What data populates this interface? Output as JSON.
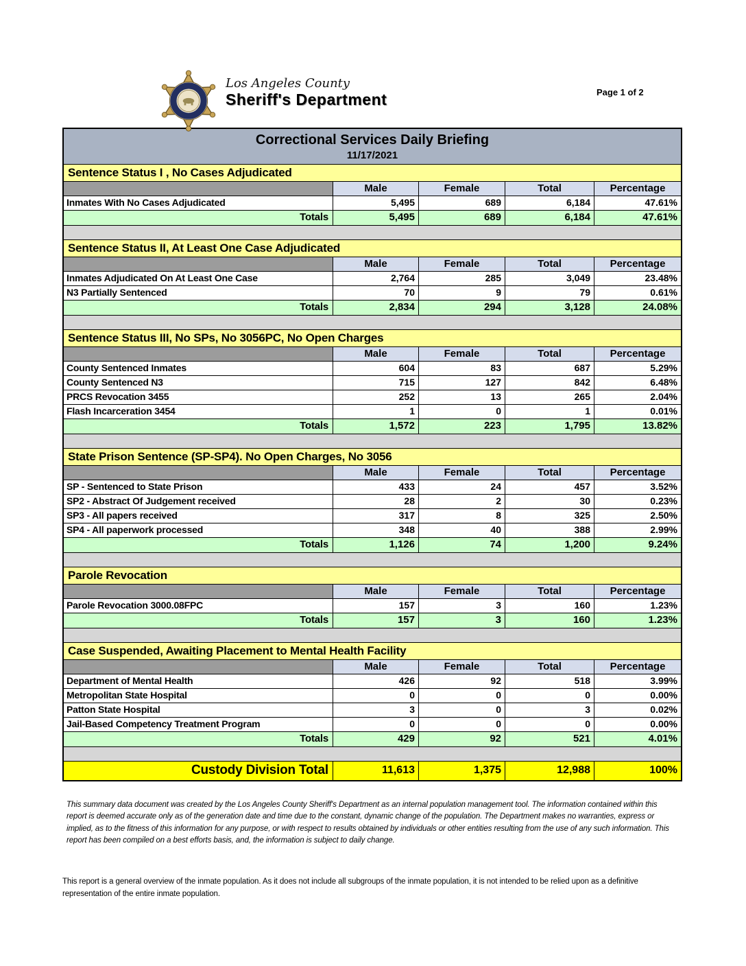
{
  "header": {
    "agency_line1": "Los Angeles County",
    "agency_line2": "Sheriff's Department",
    "page_indicator": "Page 1 of 2"
  },
  "report": {
    "title": "Correctional Services Daily Briefing",
    "date": "11/17/2021",
    "columns": {
      "male": "Male",
      "female": "Female",
      "total": "Total",
      "percentage": "Percentage"
    },
    "totals_label": "Totals"
  },
  "sections": [
    {
      "title": "Sentence Status I , No Cases Adjudicated",
      "rows": [
        {
          "label": "Inmates With No Cases Adjudicated",
          "male": "5,495",
          "female": "689",
          "total": "6,184",
          "percentage": "47.61%"
        }
      ],
      "totals": {
        "male": "5,495",
        "female": "689",
        "total": "6,184",
        "percentage": "47.61%"
      }
    },
    {
      "title": "Sentence Status II, At Least One Case Adjudicated",
      "rows": [
        {
          "label": "Inmates Adjudicated On At Least One Case",
          "male": "2,764",
          "female": "285",
          "total": "3,049",
          "percentage": "23.48%"
        },
        {
          "label": "N3 Partially Sentenced",
          "male": "70",
          "female": "9",
          "total": "79",
          "percentage": "0.61%"
        }
      ],
      "totals": {
        "male": "2,834",
        "female": "294",
        "total": "3,128",
        "percentage": "24.08%"
      }
    },
    {
      "title": "Sentence Status III, No SPs, No 3056PC, No Open Charges",
      "rows": [
        {
          "label": "County Sentenced Inmates",
          "male": "604",
          "female": "83",
          "total": "687",
          "percentage": "5.29%"
        },
        {
          "label": "County Sentenced N3",
          "male": "715",
          "female": "127",
          "total": "842",
          "percentage": "6.48%"
        },
        {
          "label": "PRCS Revocation 3455",
          "male": "252",
          "female": "13",
          "total": "265",
          "percentage": "2.04%"
        },
        {
          "label": "Flash Incarceration 3454",
          "male": "1",
          "female": "0",
          "total": "1",
          "percentage": "0.01%"
        }
      ],
      "totals": {
        "male": "1,572",
        "female": "223",
        "total": "1,795",
        "percentage": "13.82%"
      }
    },
    {
      "title": "State Prison Sentence (SP-SP4). No Open Charges, No 3056",
      "rows": [
        {
          "label": "SP - Sentenced to State Prison",
          "male": "433",
          "female": "24",
          "total": "457",
          "percentage": "3.52%"
        },
        {
          "label": "SP2 - Abstract Of Judgement received",
          "male": "28",
          "female": "2",
          "total": "30",
          "percentage": "0.23%"
        },
        {
          "label": "SP3 - All papers received",
          "male": "317",
          "female": "8",
          "total": "325",
          "percentage": "2.50%"
        },
        {
          "label": "SP4 - All paperwork processed",
          "male": "348",
          "female": "40",
          "total": "388",
          "percentage": "2.99%"
        }
      ],
      "totals": {
        "male": "1,126",
        "female": "74",
        "total": "1,200",
        "percentage": "9.24%"
      }
    },
    {
      "title": "Parole Revocation",
      "rows": [
        {
          "label": "Parole Revocation 3000.08FPC",
          "male": "157",
          "female": "3",
          "total": "160",
          "percentage": "1.23%"
        }
      ],
      "totals": {
        "male": "157",
        "female": "3",
        "total": "160",
        "percentage": "1.23%"
      }
    },
    {
      "title": "Case Suspended, Awaiting Placement to Mental Health Facility",
      "rows": [
        {
          "label": "Department of Mental Health",
          "male": "426",
          "female": "92",
          "total": "518",
          "percentage": "3.99%"
        },
        {
          "label": "Metropolitan State Hospital",
          "male": "0",
          "female": "0",
          "total": "0",
          "percentage": "0.00%"
        },
        {
          "label": "Patton State Hospital",
          "male": "3",
          "female": "0",
          "total": "3",
          "percentage": "0.02%"
        },
        {
          "label": "Jail-Based Competency Treatment Program",
          "male": "0",
          "female": "0",
          "total": "0",
          "percentage": "0.00%"
        }
      ],
      "totals": {
        "male": "429",
        "female": "92",
        "total": "521",
        "percentage": "4.01%"
      }
    }
  ],
  "grand_total": {
    "label": "Custody Division Total",
    "male": "11,613",
    "female": "1,375",
    "total": "12,988",
    "percentage": "100%"
  },
  "footer": {
    "disclaimer": "This summary data document was created by the Los Angeles County Sheriff's Department as an internal population management tool.  The information contained within this report is deemed accurate only as of the generation date and time due to the constant, dynamic change of the population.  The Department makes no warranties, express or implied, as to the fitness of this information for any purpose, or with respect to results obtained by individuals or other entities resulting from the use of any such information.  This report has been compiled on a best efforts basis, and, the information is subject to daily change.",
    "note": "This report is a general overview of the inmate population.  As it does not include all subgroups of the inmate population, it is not intended to be relied upon as a definitive representation of the entire inmate population."
  },
  "colors": {
    "title_bar": "#a9b3c3",
    "section_header_yellow": "#ffff99",
    "column_header_blue": "#d5dcec",
    "column_spacer_gray": "#9c9c9c",
    "totals_green": "#ccffcc",
    "gap_gray": "#d6d6d6",
    "grand_total_yellow": "#ffff00",
    "badge_gold": "#c9a558",
    "badge_navy": "#232f60"
  }
}
